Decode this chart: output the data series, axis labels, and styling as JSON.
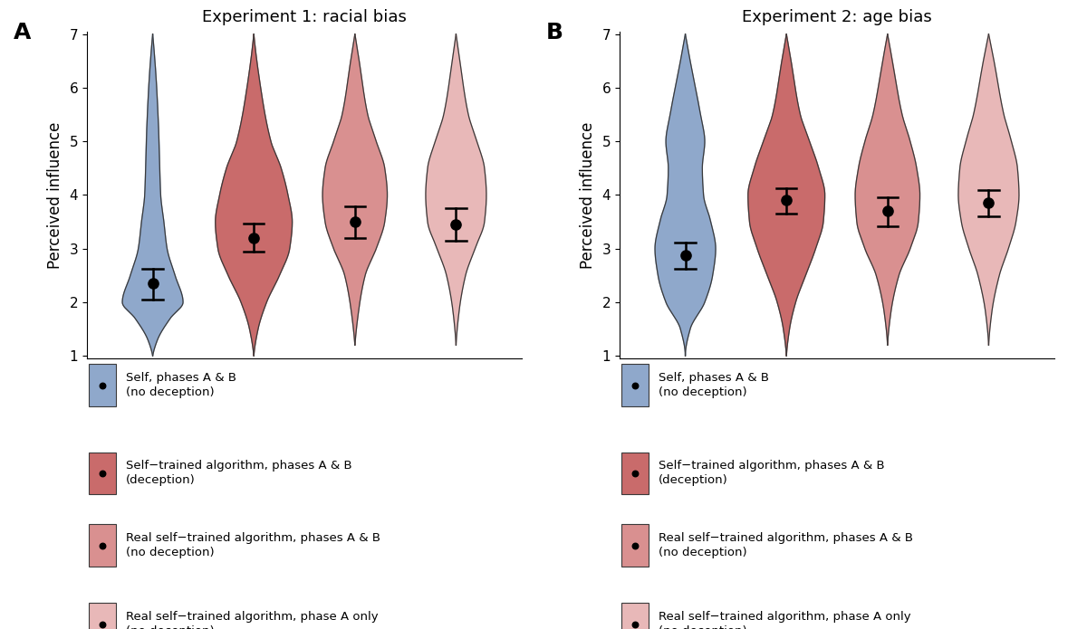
{
  "exp1_title": "Experiment 1: racial bias",
  "exp2_title": "Experiment 2: age bias",
  "ylabel": "Perceived influence",
  "panel_A_label": "A",
  "panel_B_label": "B",
  "ylim": [
    1,
    7
  ],
  "yticks": [
    1,
    2,
    3,
    4,
    5,
    6,
    7
  ],
  "colors": {
    "blue": "#8FA8CB",
    "dark_red": "#C96B6B",
    "medium_red": "#D99090",
    "light_red": "#E8B8B8"
  },
  "edge_color": "#3a3a3a",
  "exp1_means": [
    2.35,
    3.2,
    3.5,
    3.45
  ],
  "exp1_ci_low": [
    2.05,
    2.95,
    3.2,
    3.15
  ],
  "exp1_ci_high": [
    2.62,
    3.47,
    3.78,
    3.75
  ],
  "exp2_means": [
    2.88,
    3.9,
    3.7,
    3.85
  ],
  "exp2_ci_low": [
    2.62,
    3.65,
    3.42,
    3.6
  ],
  "exp2_ci_high": [
    3.12,
    4.12,
    3.95,
    4.1
  ],
  "legend_labels": [
    "Self, phases A & B\n(no deception)",
    "Self−trained algorithm, phases A & B\n(deception)",
    "Real self−trained algorithm, phases A & B\n(no deception)",
    "Real self−trained algorithm, phase A only\n(no deception)"
  ]
}
